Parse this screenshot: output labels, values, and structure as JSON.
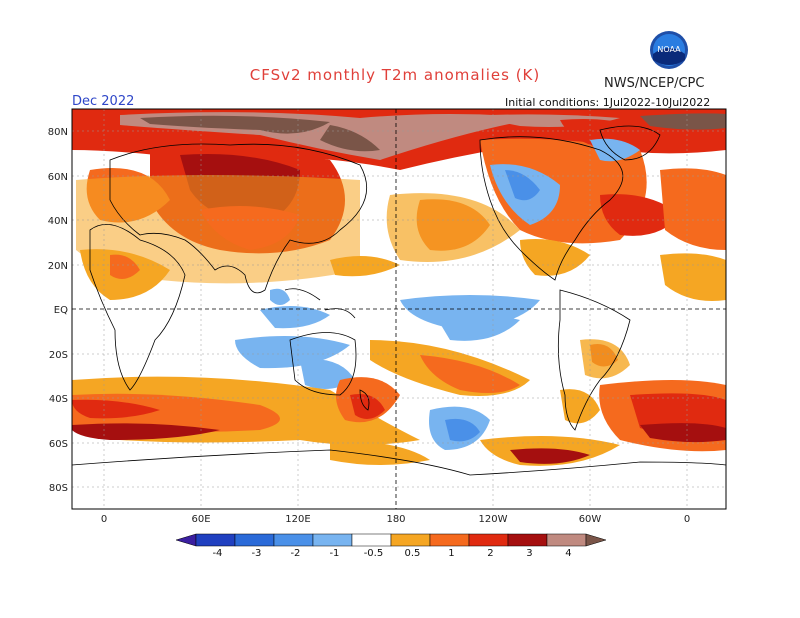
{
  "title": "CFSv2 monthly T2m anomalies (K)",
  "org": "NWS/NCEP/CPC",
  "month": "Dec 2022",
  "initial_conditions": "Initial conditions: 1Jul2022-10Jul2022",
  "logo_text": "NOAA",
  "lat_labels": [
    "80N",
    "60N",
    "40N",
    "20N",
    "EQ",
    "20S",
    "40S",
    "60S",
    "80S"
  ],
  "lon_labels": [
    "0",
    "60E",
    "120E",
    "180",
    "120W",
    "60W",
    "0"
  ],
  "colorbar": {
    "labels": [
      "-4",
      "-3",
      "-2",
      "-1",
      "-0.5",
      "0.5",
      "1",
      "2",
      "3",
      "4"
    ],
    "colors": [
      "#3b1fa0",
      "#2040c0",
      "#2a6ad8",
      "#4a90e8",
      "#78b4f0",
      "#ffffff",
      "#f5a623",
      "#f56a1e",
      "#e02a10",
      "#a50f0f",
      "#c08a80",
      "#7a5548"
    ]
  }
}
